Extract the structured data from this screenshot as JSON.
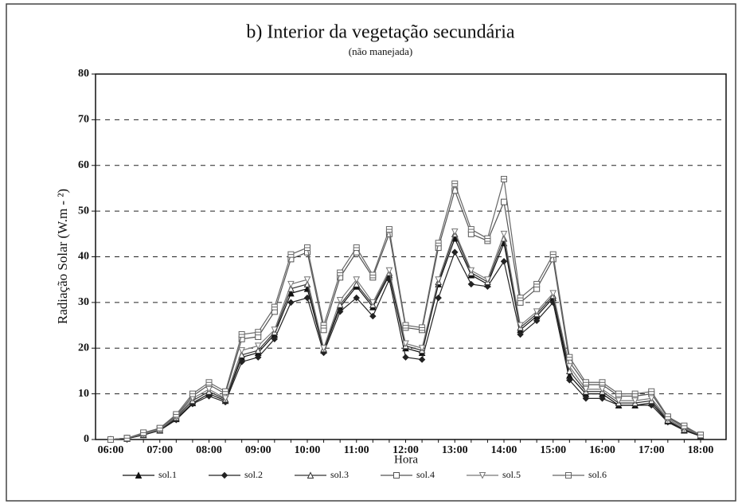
{
  "chart_data": {
    "type": "line",
    "title": "b) Interior da vegetação secundária",
    "subtitle": "(não manejada)",
    "x_label": "Hora",
    "y_label": "Radiação Solar (W.m - ²)",
    "categories": [
      "06:00",
      null,
      null,
      "07:00",
      null,
      null,
      "08:00",
      null,
      null,
      "09:00",
      null,
      null,
      "10:00",
      null,
      null,
      "11:00",
      null,
      null,
      "12:00",
      null,
      null,
      "13:00",
      null,
      null,
      "14:00",
      null,
      null,
      "15:00",
      null,
      null,
      "16:00",
      null,
      null,
      "17:00",
      null,
      null,
      "18:00"
    ],
    "ylim": [
      0,
      80
    ],
    "yticks": [
      0,
      10,
      20,
      30,
      40,
      50,
      60,
      70,
      80
    ],
    "grid": true,
    "legend": "bottom",
    "series": [
      {
        "name": "sol.1",
        "color": "#111111",
        "marker": "triangle",
        "values": [
          0,
          0.2,
          1,
          2,
          4.5,
          8,
          10,
          8.5,
          18,
          19,
          23,
          32,
          33,
          19.5,
          29,
          33.5,
          29,
          36,
          20,
          19,
          34,
          44,
          36,
          34,
          43,
          24,
          27,
          31,
          14,
          10,
          10,
          7.5,
          7.5,
          8,
          4,
          2,
          0.8
        ]
      },
      {
        "name": "sol.2",
        "color": "#222222",
        "marker": "diamond",
        "values": [
          0,
          0.2,
          1,
          2,
          4.3,
          7.8,
          9.5,
          8.2,
          17,
          18,
          22,
          30,
          31,
          19,
          28,
          31,
          27,
          35,
          18,
          17.5,
          31,
          41,
          34,
          33.5,
          39,
          23,
          26,
          30,
          13,
          9,
          9,
          7.5,
          7.5,
          7.5,
          3.8,
          2,
          0.7
        ]
      },
      {
        "name": "sol.3",
        "color": "#333333",
        "marker": "triangle-open",
        "values": [
          0,
          0.3,
          1.1,
          2.1,
          4.8,
          8.5,
          10.5,
          8.8,
          18.5,
          19.5,
          23.5,
          33,
          34,
          19.8,
          29.5,
          34,
          29.5,
          36.5,
          20.5,
          19.5,
          34.5,
          45,
          36.5,
          34.5,
          44,
          24.5,
          27.5,
          31.5,
          15,
          10.5,
          10.5,
          8,
          8,
          8.5,
          4.2,
          2.2,
          0.9
        ]
      },
      {
        "name": "sol.4",
        "color": "#555555",
        "marker": "square",
        "values": [
          0,
          0.3,
          1.4,
          2.4,
          5.2,
          9.5,
          12,
          10,
          22,
          22.5,
          28,
          39.5,
          41,
          24,
          35.5,
          41,
          35.5,
          45,
          24.5,
          24,
          42,
          54.5,
          45,
          43.5,
          52,
          30,
          33,
          39.5,
          17,
          12,
          12,
          9.5,
          9.5,
          10,
          4.8,
          2.8,
          1
        ]
      },
      {
        "name": "sol.5",
        "color": "#777777",
        "marker": "triangle-down",
        "values": [
          0,
          0.3,
          1.2,
          2.2,
          5,
          9,
          11,
          9,
          19.5,
          20.5,
          24,
          34,
          35,
          20,
          30.5,
          35,
          30,
          37,
          21,
          20,
          35,
          45.5,
          37,
          35,
          45,
          25,
          28,
          32,
          16,
          11,
          11,
          8.5,
          8.5,
          9,
          4.5,
          2.5,
          1
        ]
      },
      {
        "name": "sol.6",
        "color": "#666666",
        "marker": "square-cross",
        "values": [
          0,
          0.3,
          1.5,
          2.5,
          5.5,
          10,
          12.5,
          10.5,
          23,
          23.5,
          29,
          40.5,
          42,
          25,
          36.5,
          42,
          36,
          46,
          25,
          24.5,
          43,
          56,
          46,
          44,
          57,
          31,
          34,
          40.5,
          18,
          12.5,
          12.5,
          10,
          10,
          10.5,
          5,
          3,
          1
        ]
      }
    ]
  }
}
